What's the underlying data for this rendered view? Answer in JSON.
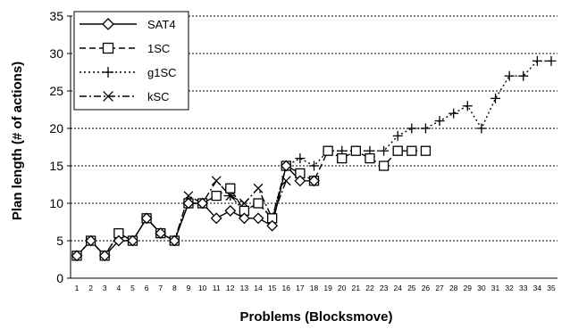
{
  "chart_data": {
    "type": "line",
    "xlabel": "Problems (Blocksmove)",
    "ylabel": "Plan length (# of actions)",
    "ylim": [
      0,
      35
    ],
    "yticks": [
      0,
      5,
      10,
      15,
      20,
      25,
      30,
      35
    ],
    "x": [
      1,
      2,
      3,
      4,
      5,
      6,
      7,
      8,
      9,
      10,
      11,
      12,
      13,
      14,
      15,
      16,
      17,
      18,
      19,
      20,
      21,
      22,
      23,
      24,
      25,
      26,
      27,
      28,
      29,
      30,
      31,
      32,
      33,
      34,
      35
    ],
    "grid": "horizontal dotted",
    "legend_position": "top-left",
    "series": [
      {
        "name": "SAT4",
        "marker": "diamond",
        "dash": "solid",
        "values": [
          3,
          5,
          3,
          5,
          5,
          8,
          6,
          5,
          10,
          10,
          8,
          9,
          8,
          8,
          7,
          15,
          13,
          13,
          null,
          null,
          null,
          null,
          null,
          null,
          null,
          null,
          null,
          null,
          null,
          null,
          null,
          null,
          null,
          null,
          null
        ]
      },
      {
        "name": "1SC",
        "marker": "square",
        "dash": "dashed",
        "values": [
          3,
          5,
          3,
          6,
          5,
          8,
          6,
          5,
          10,
          10,
          11,
          12,
          9,
          10,
          8,
          15,
          14,
          13,
          17,
          16,
          17,
          16,
          15,
          17,
          17,
          17,
          null,
          null,
          null,
          null,
          null,
          null,
          null,
          null,
          null
        ]
      },
      {
        "name": "g1SC",
        "marker": "plus",
        "dash": "dotted",
        "values": [
          3,
          5,
          3,
          6,
          5,
          8,
          6,
          5,
          10,
          10,
          11,
          11,
          9,
          10,
          8,
          15,
          16,
          15,
          17,
          17,
          17,
          17,
          17,
          19,
          20,
          20,
          21,
          22,
          23,
          20,
          24,
          27,
          27,
          29,
          29
        ]
      },
      {
        "name": "kSC",
        "marker": "x",
        "dash": "dashdot",
        "values": [
          3,
          5,
          3,
          6,
          5,
          8,
          6,
          5,
          11,
          10,
          13,
          11,
          10,
          12,
          8,
          13,
          null,
          null,
          null,
          null,
          null,
          null,
          null,
          null,
          null,
          null,
          null,
          null,
          null,
          null,
          null,
          null,
          null,
          null,
          null
        ]
      }
    ]
  }
}
